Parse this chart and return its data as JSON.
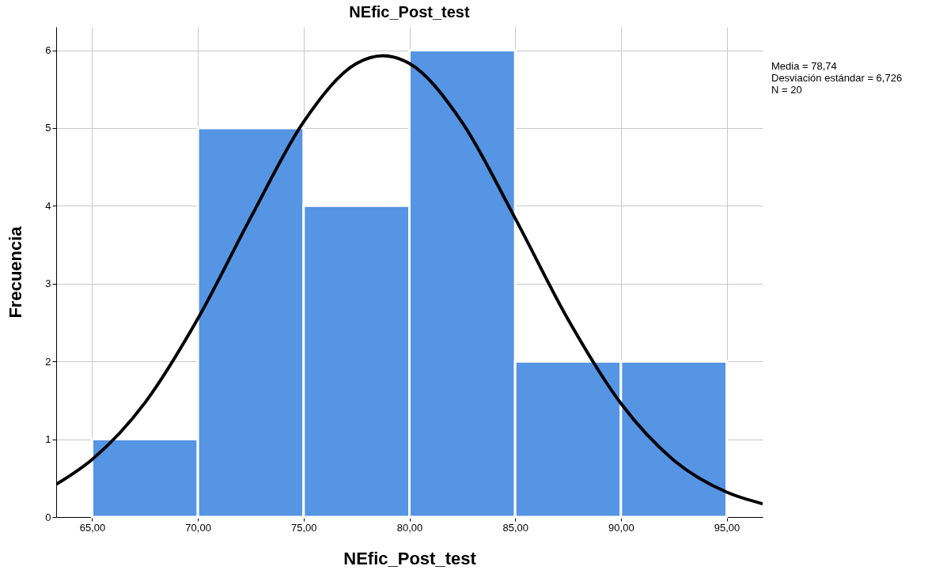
{
  "chart_data": {
    "type": "histogram",
    "title": "NEfic_Post_test",
    "xlabel": "NEfic_Post_test",
    "ylabel": "Frecuencia",
    "bins": [
      65,
      70,
      75,
      80,
      85,
      90,
      95
    ],
    "values": [
      1,
      5,
      4,
      6,
      2,
      2
    ],
    "color": "#5694e4",
    "series": [
      {
        "type": "line",
        "color": "#000000",
        "x": [
          63.3,
          65,
          67.5,
          70,
          72.5,
          75,
          77.5,
          78.74,
          80,
          82.5,
          85,
          87.5,
          90,
          92.5,
          95,
          96.7
        ],
        "values": [
          0.42,
          0.74,
          1.47,
          2.55,
          3.85,
          5.08,
          5.83,
          5.93,
          5.83,
          5.07,
          3.84,
          2.54,
          1.46,
          0.73,
          0.32,
          0.17
        ]
      }
    ],
    "xlim": [
      63.3,
      96.7
    ],
    "ylim": [
      0,
      6.3
    ],
    "xticks": [
      {
        "value": 65,
        "label": "65,00"
      },
      {
        "value": 70,
        "label": "70,00"
      },
      {
        "value": 75,
        "label": "75,00"
      },
      {
        "value": 80,
        "label": "80,00"
      },
      {
        "value": 85,
        "label": "85,00"
      },
      {
        "value": 90,
        "label": "90,00"
      },
      {
        "value": 95,
        "label": "95,00"
      }
    ],
    "yticks": [
      0,
      1,
      2,
      3,
      4,
      5,
      6
    ],
    "grid": true,
    "annotations": [
      "Media = 78,74",
      "Desviación estándar = 6,726",
      "N = 20"
    ]
  }
}
